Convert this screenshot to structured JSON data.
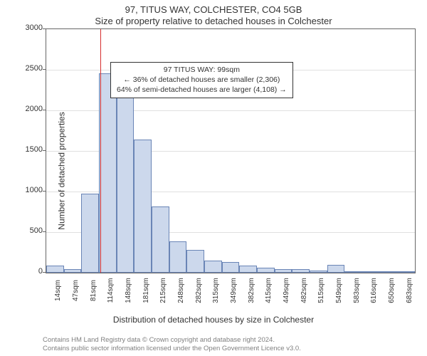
{
  "header": {
    "address": "97, TITUS WAY, COLCHESTER, CO4 5GB",
    "subtitle": "Size of property relative to detached houses in Colchester"
  },
  "chart": {
    "type": "histogram",
    "ylabel": "Number of detached properties",
    "xlabel": "Distribution of detached houses by size in Colchester",
    "ylim": [
      0,
      3000
    ],
    "ytick_step": 500,
    "yticks": [
      0,
      500,
      1000,
      1500,
      2000,
      2500,
      3000
    ],
    "x_tick_labels": [
      "14sqm",
      "47sqm",
      "81sqm",
      "114sqm",
      "148sqm",
      "181sqm",
      "215sqm",
      "248sqm",
      "282sqm",
      "315sqm",
      "349sqm",
      "382sqm",
      "415sqm",
      "449sqm",
      "482sqm",
      "515sqm",
      "549sqm",
      "583sqm",
      "616sqm",
      "650sqm",
      "683sqm"
    ],
    "bar_values": [
      90,
      40,
      970,
      2460,
      2480,
      1640,
      820,
      390,
      280,
      150,
      130,
      90,
      60,
      40,
      45,
      30,
      100,
      20,
      15,
      10,
      8
    ],
    "bar_fill": "#ccd8ec",
    "bar_border": "#6a85b6",
    "grid_color": "#e0e0e0",
    "plot_border_color": "#666666",
    "marker_color": "#d62e2e",
    "marker_x_index": 3.08,
    "infobox": {
      "line1": "97 TITUS WAY: 99sqm",
      "line2": "← 36% of detached houses are smaller (2,306)",
      "line3": "64% of semi-detached houses are larger (4,108) →"
    }
  },
  "footer": {
    "line1": "Contains HM Land Registry data © Crown copyright and database right 2024.",
    "line2": "Contains public sector information licensed under the Open Government Licence v3.0."
  }
}
